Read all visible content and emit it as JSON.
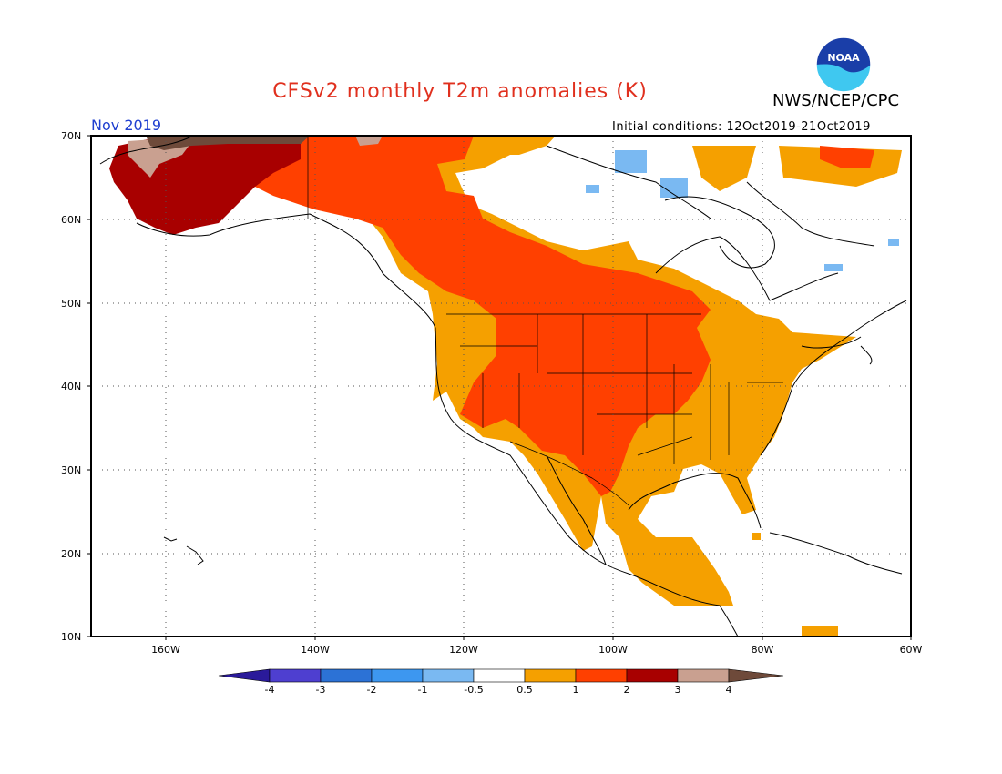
{
  "header": {
    "title": "CFSv2 monthly T2m anomalies (K)",
    "org": "NWS/NCEP/CPC",
    "logo_text": "NOAA",
    "month": "Nov 2019",
    "initial_conditions": "Initial conditions: 12Oct2019-21Oct2019"
  },
  "map": {
    "lat_labels": [
      "70N",
      "60N",
      "50N",
      "40N",
      "30N",
      "20N",
      "10N"
    ],
    "lon_labels": [
      "160W",
      "140W",
      "120W",
      "100W",
      "80W",
      "60W"
    ],
    "extent": {
      "lon": [
        -170,
        -60
      ],
      "lat": [
        10,
        70
      ]
    }
  },
  "colorbar": {
    "labels": [
      "-4",
      "-3",
      "-2",
      "-1",
      "-0.5",
      "0.5",
      "1",
      "2",
      "3",
      "4"
    ],
    "colors": [
      "#2a1a9a",
      "#4e3fd0",
      "#2c72d6",
      "#3d97f0",
      "#7ab9f2",
      "#ffffff",
      "#f5a000",
      "#ff4000",
      "#a80000",
      "#c9a090",
      "#6e4a3a"
    ]
  }
}
